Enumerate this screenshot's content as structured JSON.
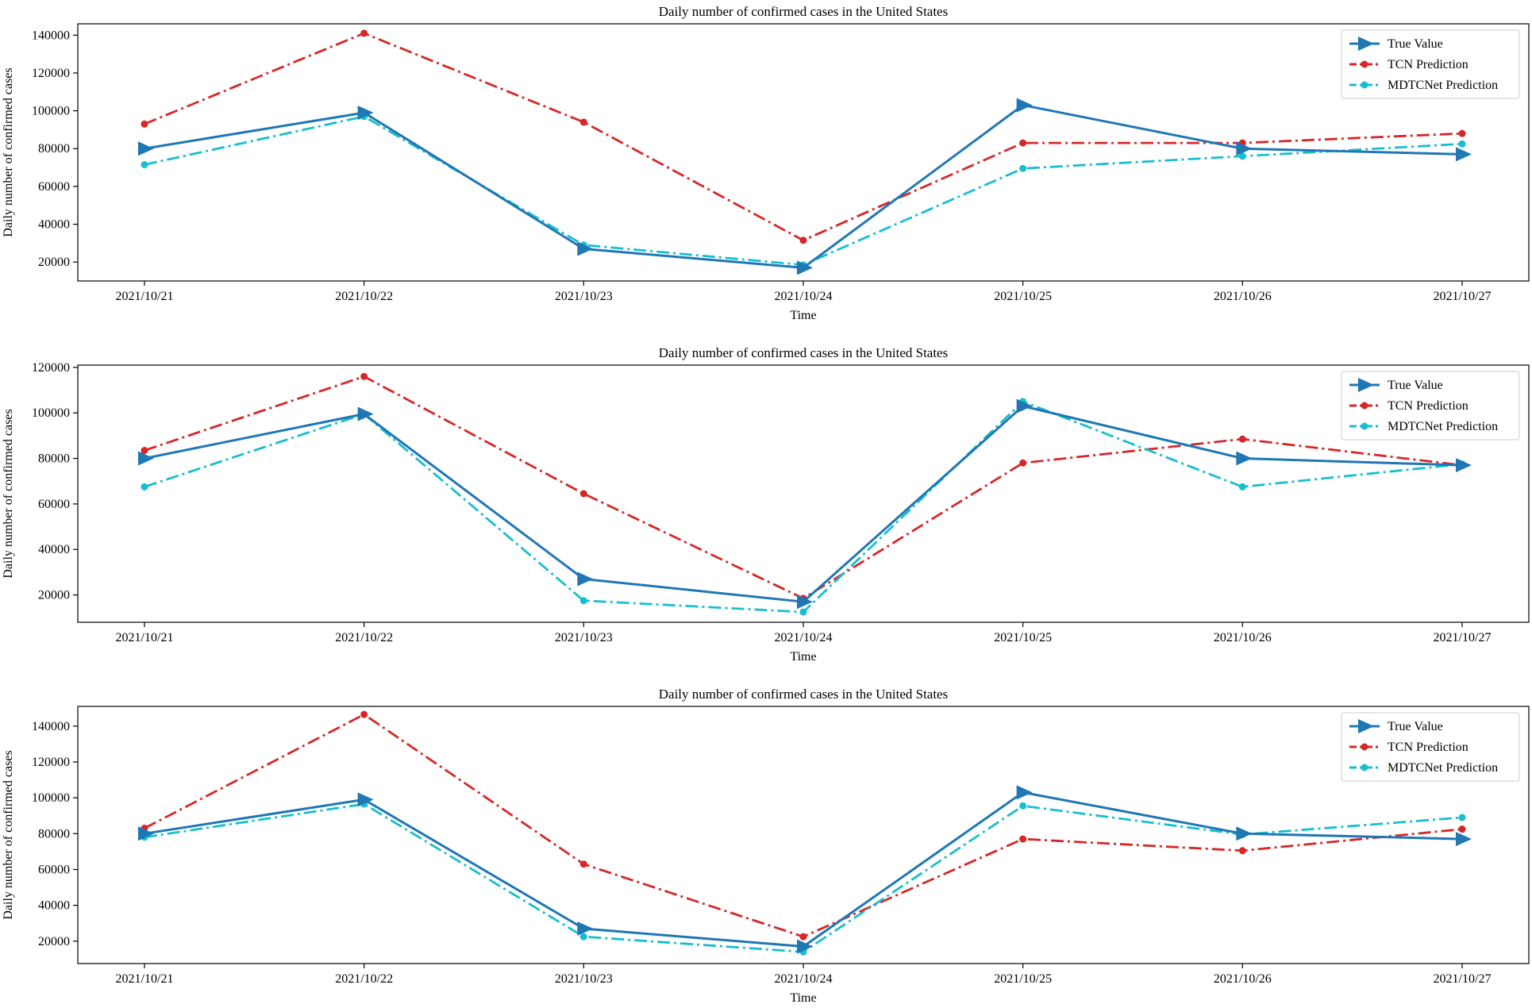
{
  "chart_data": [
    {
      "type": "line",
      "title": "Daily number of confirmed cases in the United States",
      "xlabel": "Time",
      "ylabel": "Daily number of confirmed cases",
      "categories": [
        "2021/10/21",
        "2021/10/22",
        "2021/10/23",
        "2021/10/24",
        "2021/10/25",
        "2021/10/26",
        "2021/10/27"
      ],
      "yticks": [
        20000,
        40000,
        60000,
        80000,
        100000,
        120000,
        140000
      ],
      "ylim": [
        10000,
        146000
      ],
      "grid": false,
      "legend_position": "top-right",
      "series": [
        {
          "name": "True Value",
          "color": "#1f77b4",
          "style": "solid",
          "marker": "triangle-right",
          "values": [
            80000,
            99000,
            27000,
            17000,
            103000,
            80000,
            77000
          ]
        },
        {
          "name": "TCN Prediction",
          "color": "#d62728",
          "style": "dashdot",
          "marker": "circle",
          "values": [
            93000,
            141000,
            94000,
            31500,
            83000,
            83000,
            88000
          ]
        },
        {
          "name": "MDTCNet Prediction",
          "color": "#17becf",
          "style": "dashdot",
          "marker": "circle",
          "values": [
            71500,
            97000,
            29000,
            18500,
            69500,
            76000,
            82500
          ]
        }
      ]
    },
    {
      "type": "line",
      "title": "Daily number of confirmed cases in the United States",
      "xlabel": "Time",
      "ylabel": "Daily number of confirmed cases",
      "categories": [
        "2021/10/21",
        "2021/10/22",
        "2021/10/23",
        "2021/10/24",
        "2021/10/25",
        "2021/10/26",
        "2021/10/27"
      ],
      "yticks": [
        20000,
        40000,
        60000,
        80000,
        100000,
        120000
      ],
      "ylim": [
        8000,
        121000
      ],
      "grid": false,
      "legend_position": "top-right",
      "series": [
        {
          "name": "True Value",
          "color": "#1f77b4",
          "style": "solid",
          "marker": "triangle-right",
          "values": [
            80000,
            99500,
            27000,
            17000,
            103000,
            80000,
            77000
          ]
        },
        {
          "name": "TCN Prediction",
          "color": "#d62728",
          "style": "dashdot",
          "marker": "circle",
          "values": [
            83500,
            116000,
            64500,
            18500,
            78000,
            88500,
            77000
          ]
        },
        {
          "name": "MDTCNet Prediction",
          "color": "#17becf",
          "style": "dashdot",
          "marker": "circle",
          "values": [
            67500,
            99500,
            17500,
            12500,
            105000,
            67500,
            77500
          ]
        }
      ]
    },
    {
      "type": "line",
      "title": "Daily number of confirmed cases in the United States",
      "xlabel": "Time",
      "ylabel": "Daily number of confirmed cases",
      "categories": [
        "2021/10/21",
        "2021/10/22",
        "2021/10/23",
        "2021/10/24",
        "2021/10/25",
        "2021/10/26",
        "2021/10/27"
      ],
      "yticks": [
        20000,
        40000,
        60000,
        80000,
        100000,
        120000,
        140000
      ],
      "ylim": [
        7500,
        151000
      ],
      "grid": false,
      "legend_position": "top-right",
      "series": [
        {
          "name": "True Value",
          "color": "#1f77b4",
          "style": "solid",
          "marker": "triangle-right",
          "values": [
            80000,
            99000,
            27000,
            17000,
            103000,
            80000,
            77000
          ]
        },
        {
          "name": "TCN Prediction",
          "color": "#d62728",
          "style": "dashdot",
          "marker": "circle",
          "values": [
            83000,
            146500,
            63000,
            22500,
            77000,
            70500,
            82500
          ]
        },
        {
          "name": "MDTCNet Prediction",
          "color": "#17becf",
          "style": "dashdot",
          "marker": "circle",
          "values": [
            78000,
            96500,
            22500,
            14000,
            95500,
            79500,
            89000
          ]
        }
      ]
    }
  ]
}
